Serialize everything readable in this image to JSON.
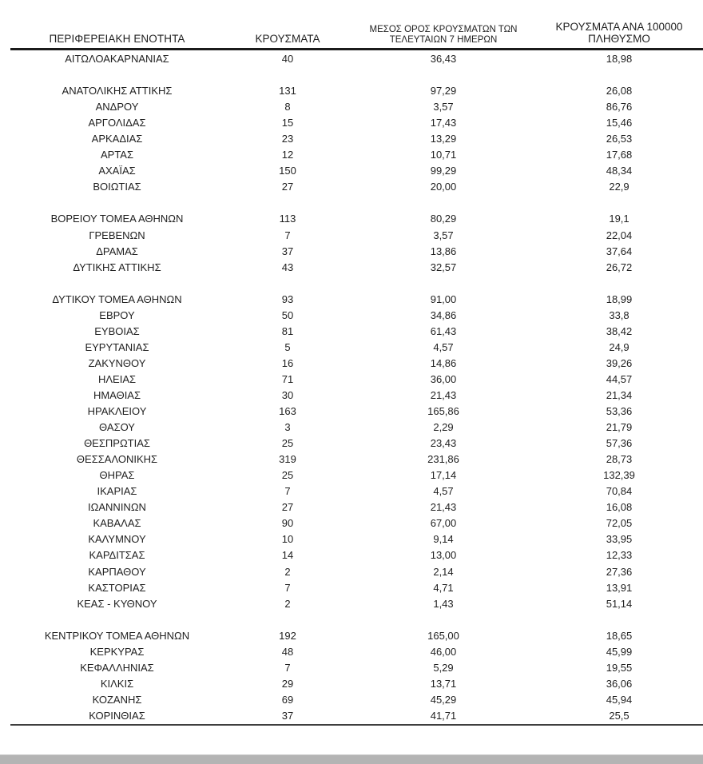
{
  "colors": {
    "text": "#1f1f1f",
    "header_rule": "#1b1b1b",
    "footer_rule": "#3f3f3f",
    "bottom_bar": "#b4b4b4",
    "bottom_bar_edge": "#cdcdcd"
  },
  "table": {
    "columns": [
      {
        "label": "ΠΕΡΙΦΕΡΕΙΑΚΗ ΕΝΟΤΗΤΑ"
      },
      {
        "label": "ΚΡΟΥΣΜΑΤΑ"
      },
      {
        "label": "ΜΕΣΟΣ ΟΡΟΣ ΚΡΟΥΣΜΑΤΩΝ ΤΩΝ ΤΕΛΕΥΤΑΙΩΝ 7 ΗΜΕΡΩΝ"
      },
      {
        "label": "ΚΡΟΥΣΜΑΤΑ ΑΝΑ 100000 ΠΛΗΘΥΣΜΟ"
      }
    ],
    "groups": [
      {
        "rows": [
          [
            "ΑΙΤΩΛΟΑΚΑΡΝΑΝΙΑΣ",
            "40",
            "36,43",
            "18,98"
          ]
        ]
      },
      {
        "rows": [
          [
            "ΑΝΑΤΟΛΙΚΗΣ ΑΤΤΙΚΗΣ",
            "131",
            "97,29",
            "26,08"
          ],
          [
            "ΑΝΔΡΟΥ",
            "8",
            "3,57",
            "86,76"
          ],
          [
            "ΑΡΓΟΛΙΔΑΣ",
            "15",
            "17,43",
            "15,46"
          ],
          [
            "ΑΡΚΑΔΙΑΣ",
            "23",
            "13,29",
            "26,53"
          ],
          [
            "ΑΡΤΑΣ",
            "12",
            "10,71",
            "17,68"
          ],
          [
            "ΑΧΑΪΑΣ",
            "150",
            "99,29",
            "48,34"
          ],
          [
            "ΒΟΙΩΤΙΑΣ",
            "27",
            "20,00",
            "22,9"
          ]
        ]
      },
      {
        "rows": [
          [
            "ΒΟΡΕΙΟΥ ΤΟΜΕΑ ΑΘΗΝΩΝ",
            "113",
            "80,29",
            "19,1"
          ],
          [
            "ΓΡΕΒΕΝΩΝ",
            "7",
            "3,57",
            "22,04"
          ],
          [
            "ΔΡΑΜΑΣ",
            "37",
            "13,86",
            "37,64"
          ],
          [
            "ΔΥΤΙΚΗΣ ΑΤΤΙΚΗΣ",
            "43",
            "32,57",
            "26,72"
          ]
        ]
      },
      {
        "rows": [
          [
            "ΔΥΤΙΚΟΥ ΤΟΜΕΑ ΑΘΗΝΩΝ",
            "93",
            "91,00",
            "18,99"
          ],
          [
            "ΕΒΡΟΥ",
            "50",
            "34,86",
            "33,8"
          ],
          [
            "ΕΥΒΟΙΑΣ",
            "81",
            "61,43",
            "38,42"
          ],
          [
            "ΕΥΡΥΤΑΝΙΑΣ",
            "5",
            "4,57",
            "24,9"
          ],
          [
            "ΖΑΚΥΝΘΟΥ",
            "16",
            "14,86",
            "39,26"
          ],
          [
            "ΗΛΕΙΑΣ",
            "71",
            "36,00",
            "44,57"
          ],
          [
            "ΗΜΑΘΙΑΣ",
            "30",
            "21,43",
            "21,34"
          ],
          [
            "ΗΡΑΚΛΕΙΟΥ",
            "163",
            "165,86",
            "53,36"
          ],
          [
            "ΘΑΣΟΥ",
            "3",
            "2,29",
            "21,79"
          ],
          [
            "ΘΕΣΠΡΩΤΙΑΣ",
            "25",
            "23,43",
            "57,36"
          ],
          [
            "ΘΕΣΣΑΛΟΝΙΚΗΣ",
            "319",
            "231,86",
            "28,73"
          ],
          [
            "ΘΗΡΑΣ",
            "25",
            "17,14",
            "132,39"
          ],
          [
            "ΙΚΑΡΙΑΣ",
            "7",
            "4,57",
            "70,84"
          ],
          [
            "ΙΩΑΝΝΙΝΩΝ",
            "27",
            "21,43",
            "16,08"
          ],
          [
            "ΚΑΒΑΛΑΣ",
            "90",
            "67,00",
            "72,05"
          ],
          [
            "ΚΑΛΥΜΝΟΥ",
            "10",
            "9,14",
            "33,95"
          ],
          [
            "ΚΑΡΔΙΤΣΑΣ",
            "14",
            "13,00",
            "12,33"
          ],
          [
            "ΚΑΡΠΑΘΟΥ",
            "2",
            "2,14",
            "27,36"
          ],
          [
            "ΚΑΣΤΟΡΙΑΣ",
            "7",
            "4,71",
            "13,91"
          ],
          [
            "ΚΕΑΣ - ΚΥΘΝΟΥ",
            "2",
            "1,43",
            "51,14"
          ]
        ]
      },
      {
        "rows": [
          [
            "ΚΕΝΤΡΙΚΟΥ ΤΟΜΕΑ ΑΘΗΝΩΝ",
            "192",
            "165,00",
            "18,65"
          ],
          [
            "ΚΕΡΚΥΡΑΣ",
            "48",
            "46,00",
            "45,99"
          ],
          [
            "ΚΕΦΑΛΛΗΝΙΑΣ",
            "7",
            "5,29",
            "19,55"
          ],
          [
            "ΚΙΛΚΙΣ",
            "29",
            "13,71",
            "36,06"
          ],
          [
            "ΚΟΖΑΝΗΣ",
            "69",
            "45,29",
            "45,94"
          ],
          [
            "ΚΟΡΙΝΘΙΑΣ",
            "37",
            "41,71",
            "25,5"
          ]
        ]
      }
    ]
  }
}
